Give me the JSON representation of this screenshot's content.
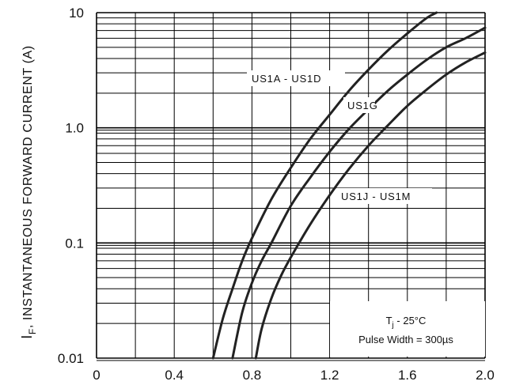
{
  "chart_data": {
    "type": "line",
    "title": "",
    "xlabel": "",
    "ylabel": {
      "symbol": "I",
      "subscript": "F",
      "text": ", INSTANTANEOUS FORWARD CURRENT (A)"
    },
    "x_scale": "linear",
    "y_scale": "log",
    "xlim": [
      0,
      2.0
    ],
    "ylim": [
      0.01,
      10
    ],
    "x_ticks": [
      0,
      0.4,
      0.8,
      1.2,
      1.6,
      2.0
    ],
    "x_tick_labels": [
      "0",
      "0.4",
      "0.8",
      "1.2",
      "1.6",
      "2.0"
    ],
    "y_ticks": [
      0.01,
      0.1,
      1.0,
      10
    ],
    "y_tick_labels": [
      "0.01",
      "0.1",
      "1.0",
      "10"
    ],
    "grid": true,
    "series": [
      {
        "name": "US1A - US1D",
        "x": [
          0.6,
          0.65,
          0.7,
          0.75,
          0.8,
          0.9,
          1.0,
          1.1,
          1.2,
          1.3,
          1.4,
          1.5,
          1.6,
          1.7,
          1.75
        ],
        "y": [
          0.01,
          0.022,
          0.04,
          0.07,
          0.11,
          0.24,
          0.45,
          0.8,
          1.3,
          2.1,
          3.2,
          4.7,
          6.6,
          9.0,
          10.0
        ]
      },
      {
        "name": "US1G",
        "x": [
          0.7,
          0.75,
          0.8,
          0.85,
          0.9,
          1.0,
          1.1,
          1.2,
          1.3,
          1.4,
          1.5,
          1.6,
          1.7,
          1.8,
          1.9,
          2.0
        ],
        "y": [
          0.01,
          0.025,
          0.045,
          0.07,
          0.1,
          0.21,
          0.37,
          0.62,
          0.98,
          1.45,
          2.1,
          2.9,
          3.9,
          5.0,
          6.0,
          7.4
        ]
      },
      {
        "name": "US1J - US1M",
        "x": [
          0.82,
          0.85,
          0.9,
          0.95,
          1.0,
          1.1,
          1.2,
          1.3,
          1.4,
          1.5,
          1.6,
          1.7,
          1.8,
          1.9,
          2.0
        ],
        "y": [
          0.01,
          0.018,
          0.033,
          0.052,
          0.075,
          0.145,
          0.26,
          0.44,
          0.7,
          1.05,
          1.55,
          2.15,
          2.9,
          3.7,
          4.5
        ]
      }
    ],
    "annotations": {
      "conditions_line1_symbol": "T",
      "conditions_line1_sub": "j",
      "conditions_line1_rest": " - 25°C",
      "conditions_line2": "Pulse Width = 300µs"
    },
    "colors": {
      "line": "#222222",
      "grid": "#000000",
      "background": "#ffffff"
    }
  }
}
